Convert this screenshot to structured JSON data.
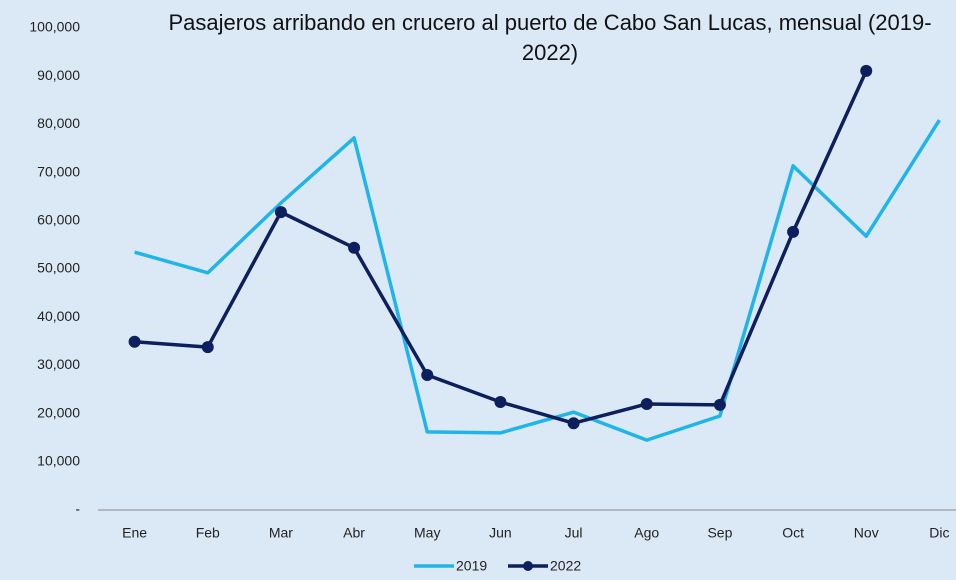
{
  "chart_data": {
    "type": "line",
    "title": "Pasajeros arribando en crucero al puerto de Cabo San Lucas, mensual (2019-2022)",
    "categories": [
      "Ene",
      "Feb",
      "Mar",
      "Abr",
      "May",
      "Jun",
      "Jul",
      "Ago",
      "Sep",
      "Oct",
      "Nov",
      "Dic"
    ],
    "series": [
      {
        "name": "2019",
        "color": "#1fb4ea",
        "marker": false,
        "values": [
          53500,
          49200,
          63700,
          77200,
          16200,
          16000,
          20300,
          14500,
          19500,
          71400,
          56800,
          80900
        ]
      },
      {
        "name": "2022",
        "color": "#0d1f5c",
        "marker": true,
        "values": [
          34900,
          33800,
          61800,
          54400,
          28000,
          22400,
          18000,
          22000,
          21800,
          57700,
          91100,
          null
        ]
      }
    ],
    "ylim": [
      0,
      100000
    ],
    "yticks": [
      {
        "value": 0,
        "label": "-"
      },
      {
        "value": 10000,
        "label": "10,000"
      },
      {
        "value": 20000,
        "label": "20,000"
      },
      {
        "value": 30000,
        "label": "30,000"
      },
      {
        "value": 40000,
        "label": "40,000"
      },
      {
        "value": 50000,
        "label": "50,000"
      },
      {
        "value": 60000,
        "label": "60,000"
      },
      {
        "value": 70000,
        "label": "70,000"
      },
      {
        "value": 80000,
        "label": "80,000"
      },
      {
        "value": 90000,
        "label": "90,000"
      },
      {
        "value": 100000,
        "label": "100,000"
      }
    ],
    "grid": false,
    "legend": "bottom"
  }
}
